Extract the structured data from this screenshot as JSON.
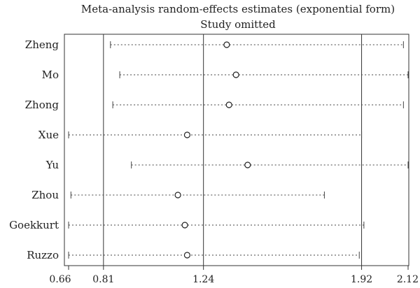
{
  "chart_data": {
    "type": "forest",
    "title": "Meta-analysis random-effects estimates (exponential form)",
    "subtitle": "Study omitted",
    "xlim": [
      0.66,
      2.12
    ],
    "xticks": [
      "0.66",
      "0.81",
      "1.24",
      "1.92",
      "2.12"
    ],
    "xtick_values": [
      0.66,
      0.81,
      1.24,
      1.92,
      2.12
    ],
    "reference_lines": [
      0.81,
      1.24,
      1.92
    ],
    "studies": [
      {
        "label": "Zheng",
        "estimate": 1.34,
        "lower": 0.84,
        "upper": 2.1
      },
      {
        "label": "Mo",
        "estimate": 1.38,
        "lower": 0.88,
        "upper": 2.12
      },
      {
        "label": "Zhong",
        "estimate": 1.35,
        "lower": 0.85,
        "upper": 2.1
      },
      {
        "label": "Xue",
        "estimate": 1.17,
        "lower": 0.66,
        "upper": 1.92
      },
      {
        "label": "Yu",
        "estimate": 1.43,
        "lower": 0.93,
        "upper": 2.12
      },
      {
        "label": "Zhou",
        "estimate": 1.13,
        "lower": 0.67,
        "upper": 1.76
      },
      {
        "label": "Goekkurt",
        "estimate": 1.16,
        "lower": 0.66,
        "upper": 1.93
      },
      {
        "label": "Ruzzo",
        "estimate": 1.17,
        "lower": 0.66,
        "upper": 1.91
      }
    ]
  }
}
